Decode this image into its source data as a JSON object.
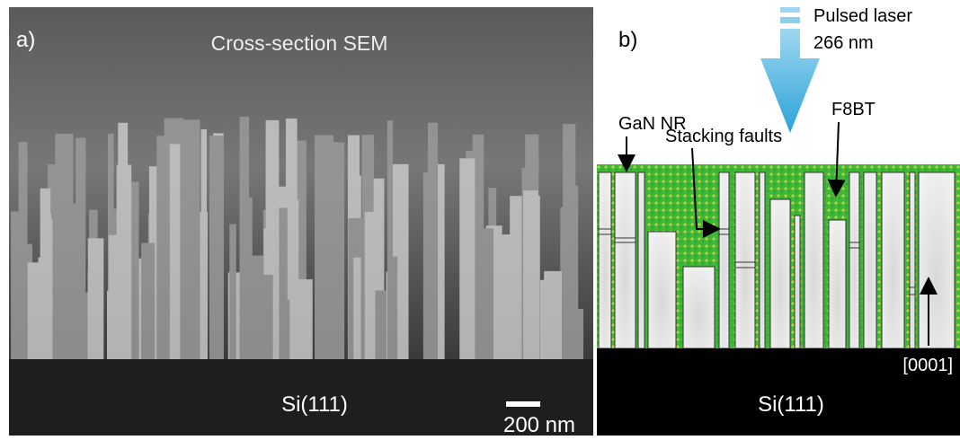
{
  "panel_a": {
    "label": "a)",
    "title": "Cross-section SEM",
    "substrate": "Si(111)",
    "scale_bar": "200 nm"
  },
  "panel_b": {
    "label": "b)",
    "laser": "Pulsed laser",
    "wavelength": "266 nm",
    "nanorod": "GaN NR",
    "faults": "Stacking faults",
    "polymer": "F8BT",
    "direction": "[0001]",
    "substrate": "Si(111)"
  }
}
